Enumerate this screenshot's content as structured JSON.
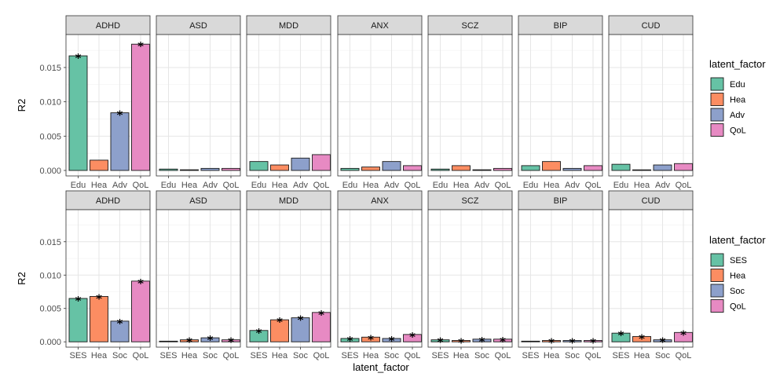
{
  "chart_data": {
    "type": "bar",
    "xlabel": "latent_factor",
    "ylabel": "R2",
    "ylim": [
      -0.0008,
      0.0198
    ],
    "yticks": [
      0.0,
      0.005,
      0.01,
      0.015
    ],
    "ytick_labels": [
      "0.000",
      "0.005",
      "0.010",
      "0.015"
    ],
    "disorders": [
      "ADHD",
      "ASD",
      "MDD",
      "ANX",
      "SCZ",
      "BIP",
      "CUD"
    ],
    "significance_marker": "*",
    "rows": [
      {
        "legend_title": "latent_factor",
        "categories": [
          "Edu",
          "Hea",
          "Adv",
          "QoL"
        ],
        "colors": [
          "#66c2a5",
          "#fc8d62",
          "#8da0cb",
          "#e78ac3"
        ],
        "panels": [
          {
            "disorder": "ADHD",
            "values": [
              0.0167,
              0.0015,
              0.0084,
              0.0184
            ],
            "significant": [
              true,
              false,
              true,
              true
            ]
          },
          {
            "disorder": "ASD",
            "values": [
              0.0002,
              0.0001,
              0.0003,
              0.0003
            ],
            "significant": [
              false,
              false,
              false,
              false
            ]
          },
          {
            "disorder": "MDD",
            "values": [
              0.0013,
              0.0008,
              0.0018,
              0.0023
            ],
            "significant": [
              false,
              false,
              false,
              false
            ]
          },
          {
            "disorder": "ANX",
            "values": [
              0.0003,
              0.0005,
              0.0013,
              0.0007
            ],
            "significant": [
              false,
              false,
              false,
              false
            ]
          },
          {
            "disorder": "SCZ",
            "values": [
              0.0002,
              0.0007,
              0.0001,
              0.0003
            ],
            "significant": [
              false,
              false,
              false,
              false
            ]
          },
          {
            "disorder": "BIP",
            "values": [
              0.0007,
              0.0013,
              0.0003,
              0.0007
            ],
            "significant": [
              false,
              false,
              false,
              false
            ]
          },
          {
            "disorder": "CUD",
            "values": [
              0.0009,
              0.0,
              0.0008,
              0.001
            ],
            "significant": [
              false,
              false,
              false,
              false
            ]
          }
        ]
      },
      {
        "legend_title": "latent_factor",
        "categories": [
          "SES",
          "Hea",
          "Soc",
          "QoL"
        ],
        "colors": [
          "#66c2a5",
          "#fc8d62",
          "#8da0cb",
          "#e78ac3"
        ],
        "panels": [
          {
            "disorder": "ADHD",
            "values": [
              0.0065,
              0.0068,
              0.0031,
              0.0091
            ],
            "significant": [
              true,
              true,
              true,
              true
            ]
          },
          {
            "disorder": "ASD",
            "values": [
              0.0001,
              0.0003,
              0.0006,
              0.0003
            ],
            "significant": [
              false,
              true,
              true,
              true
            ]
          },
          {
            "disorder": "MDD",
            "values": [
              0.0017,
              0.0033,
              0.0036,
              0.0044
            ],
            "significant": [
              true,
              true,
              true,
              true
            ]
          },
          {
            "disorder": "ANX",
            "values": [
              0.0005,
              0.0007,
              0.0005,
              0.0011
            ],
            "significant": [
              true,
              true,
              true,
              true
            ]
          },
          {
            "disorder": "SCZ",
            "values": [
              0.0003,
              0.0002,
              0.0004,
              0.0004
            ],
            "significant": [
              true,
              true,
              true,
              true
            ]
          },
          {
            "disorder": "BIP",
            "values": [
              0.0001,
              0.0002,
              0.0002,
              0.0002
            ],
            "significant": [
              false,
              true,
              true,
              true
            ]
          },
          {
            "disorder": "CUD",
            "values": [
              0.0013,
              0.0008,
              0.0003,
              0.0014
            ],
            "significant": [
              true,
              true,
              true,
              true
            ]
          }
        ]
      }
    ]
  }
}
